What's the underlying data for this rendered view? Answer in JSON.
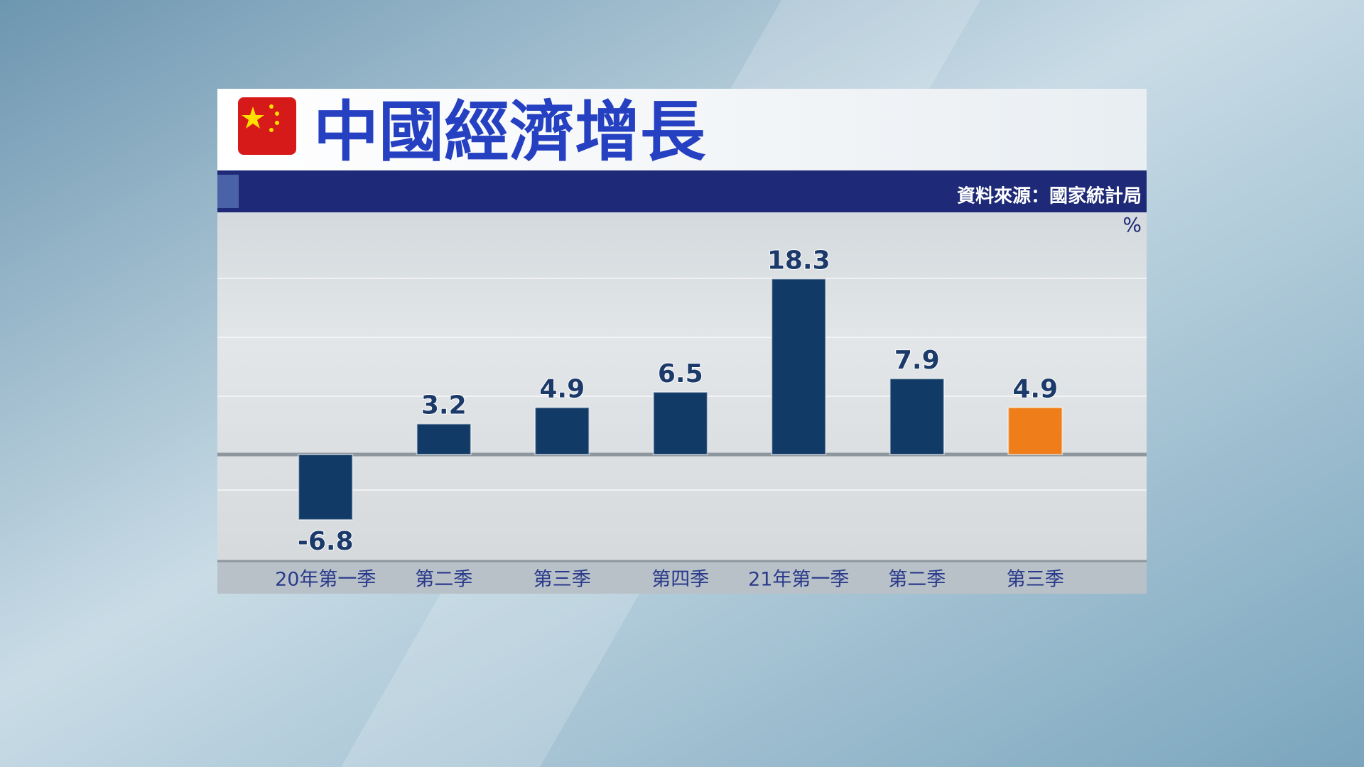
{
  "chart_data": {
    "type": "bar",
    "title": "中國經濟增長",
    "source": "資料來源：國家統計局",
    "unit": "%",
    "categories": [
      "20年第一季",
      "第二季",
      "第三季",
      "第四季",
      "21年第一季",
      "第二季",
      "第三季"
    ],
    "values": [
      -6.8,
      3.2,
      4.9,
      6.5,
      18.3,
      7.9,
      4.9
    ],
    "colors": [
      "#123a66",
      "#123a66",
      "#123a66",
      "#123a66",
      "#123a66",
      "#123a66",
      "#ee7d1a"
    ],
    "ylim": [
      -11,
      24
    ]
  }
}
